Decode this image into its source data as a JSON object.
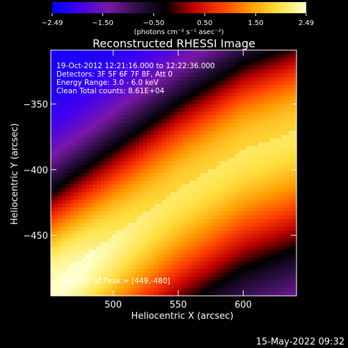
{
  "chart_data": {
    "type": "heatmap",
    "title": "Reconstructed RHESSI Image",
    "xlabel": "Heliocentric X (arcsec)",
    "ylabel": "Heliocentric Y (arcsec)",
    "xlim": [
      452,
      641
    ],
    "ylim": [
      -496,
      -309
    ],
    "x_ticks": [
      500,
      550,
      600
    ],
    "x_tick_labels": [
      "500",
      "550",
      "600"
    ],
    "y_ticks": [
      -350,
      -400,
      -450
    ],
    "y_tick_labels": [
      "−350",
      "−400",
      "−450"
    ],
    "colorbar": {
      "colormap": "hot-blue (blue-purple-red-yellow-white)",
      "range": [
        -2.49,
        2.49
      ],
      "tick_values": [
        -2.49,
        -1.5,
        -0.5,
        0.5,
        1.5,
        2.49
      ],
      "tick_labels": [
        "−2.49",
        "−1.50",
        "−0.50",
        "0.50",
        "1.50",
        "2.49"
      ],
      "units_label": "(photons cm⁻² s⁻¹ asec⁻²)",
      "stops": [
        "#0000ff",
        "#4400ee",
        "#7a18a8",
        "#301048",
        "#000000",
        "#c00000",
        "#ff4000",
        "#ff9900",
        "#ffe040",
        "#ffffc8"
      ]
    },
    "ridge": {
      "description": "bright diagonal band rising toward upper right",
      "points": [
        [
          452,
          -485
        ],
        [
          500,
          -450
        ],
        [
          550,
          -415
        ],
        [
          600,
          -385
        ],
        [
          641,
          -370
        ]
      ],
      "peak_value": 2.49,
      "peak_position": [
        449,
        -480
      ]
    },
    "info_lines": [
      "19-Oct-2012 12:21:16.000 to 12:22:36.000",
      "Detectors: 3F 5F 6F 7F 8F, Att 0",
      "Energy Range: 3.0 - 6.0 keV",
      "Clean    Total counts: 8.61E+04"
    ],
    "peak_label": "Position of Peak = [449,-480]",
    "footer_date": "15-May-2022 09:32"
  }
}
